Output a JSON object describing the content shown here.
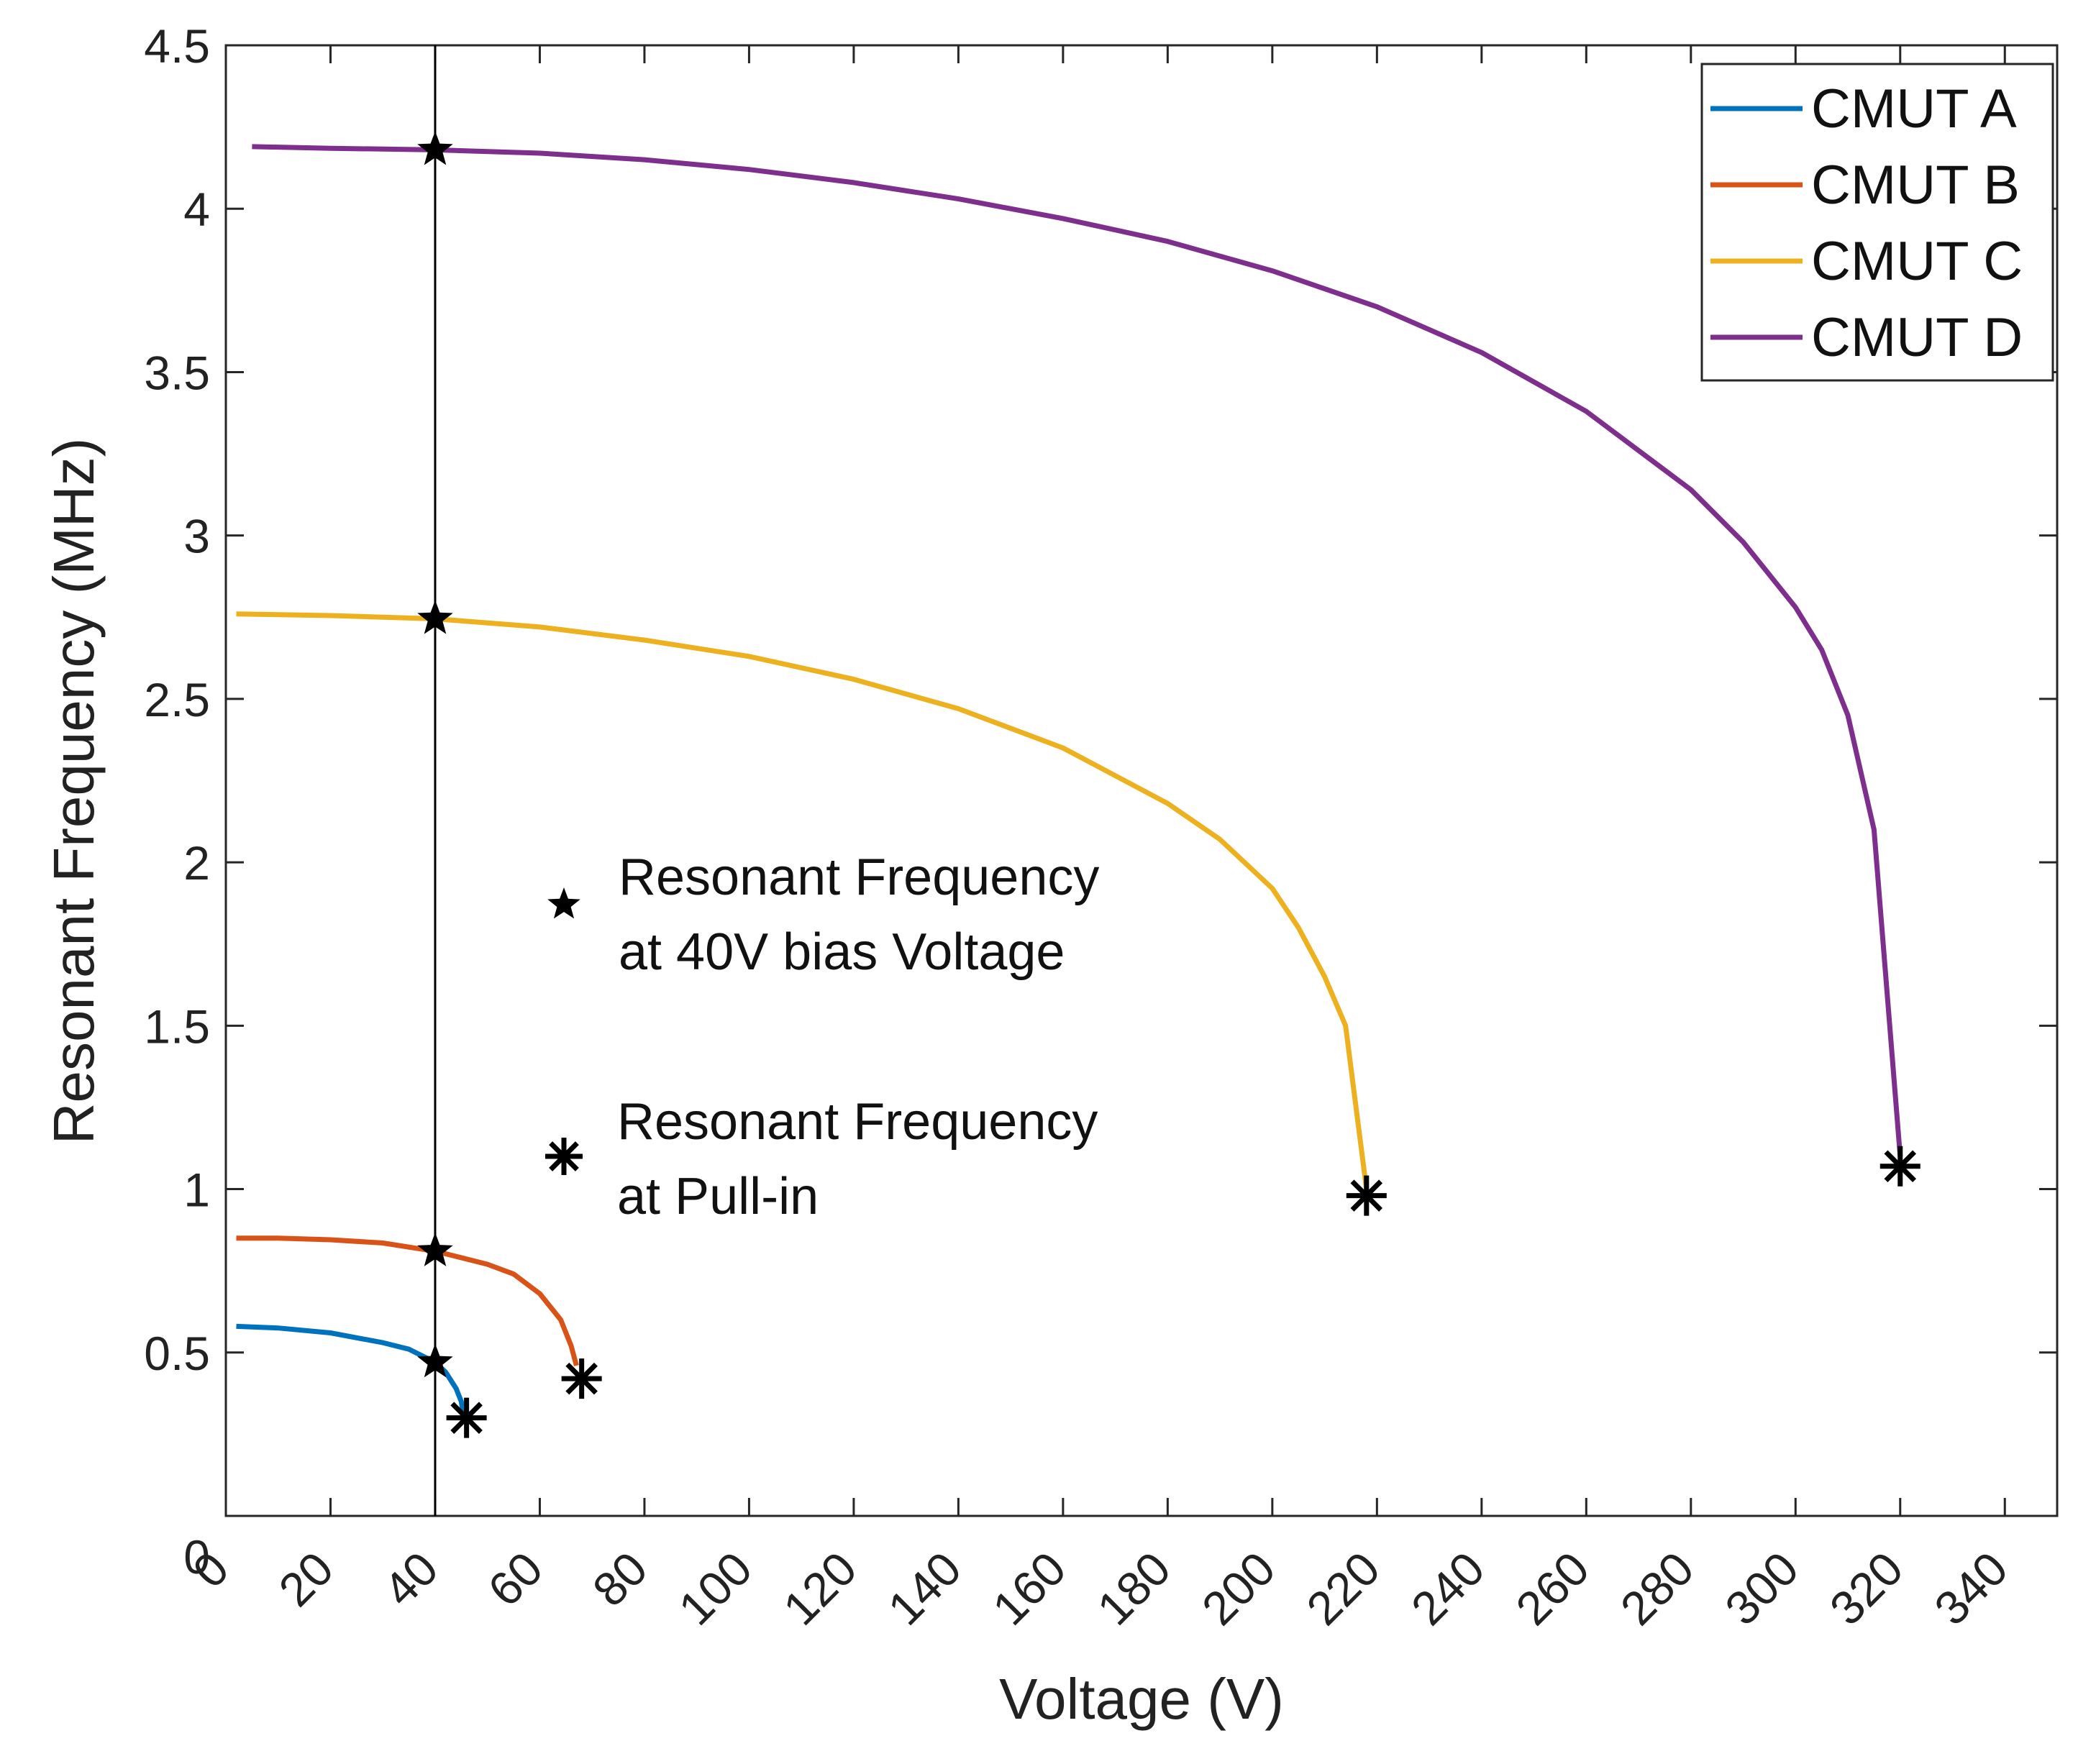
{
  "chart_data": {
    "type": "line",
    "title": "",
    "xlabel": "Voltage (V)",
    "ylabel": "Resonant Frequency (MHz)",
    "xlim": [
      0,
      350
    ],
    "ylim": [
      0,
      4.5
    ],
    "xticks": [
      0,
      20,
      40,
      60,
      80,
      100,
      120,
      140,
      160,
      180,
      200,
      220,
      240,
      260,
      280,
      300,
      320,
      340
    ],
    "xtick_labels": [
      "0",
      "20",
      "40",
      "60",
      "80",
      "100",
      "120",
      "140",
      "160",
      "180",
      "200",
      "220",
      "240",
      "260",
      "280",
      "300",
      "320",
      "340"
    ],
    "yticks": [
      0,
      0.5,
      1,
      1.5,
      2,
      2.5,
      3,
      3.5,
      4,
      4.5
    ],
    "ytick_labels": [
      "0",
      "0.5",
      "1",
      "1.5",
      "2",
      "2.5",
      "3",
      "3.5",
      "4",
      "4.5"
    ],
    "grid": false,
    "legend_position": "top-right",
    "vertical_line_x": 40,
    "series": [
      {
        "name": "CMUT A",
        "color": "#0072BD",
        "x": [
          2,
          10,
          20,
          30,
          35,
          40,
          42,
          44,
          45,
          45.5
        ],
        "y": [
          0.58,
          0.575,
          0.56,
          0.53,
          0.51,
          0.47,
          0.44,
          0.39,
          0.35,
          0.3
        ],
        "marker_40v": [
          40,
          0.47
        ],
        "pull_in": [
          46,
          0.3
        ]
      },
      {
        "name": "CMUT B",
        "color": "#D95319",
        "x": [
          2,
          10,
          20,
          30,
          40,
          50,
          55,
          60,
          64,
          66,
          67
        ],
        "y": [
          0.85,
          0.85,
          0.845,
          0.835,
          0.81,
          0.77,
          0.74,
          0.68,
          0.6,
          0.52,
          0.46
        ],
        "marker_40v": [
          40,
          0.81
        ],
        "pull_in": [
          68,
          0.42
        ]
      },
      {
        "name": "CMUT C",
        "color": "#EDB120",
        "x": [
          2,
          20,
          40,
          60,
          80,
          100,
          120,
          140,
          160,
          180,
          190,
          200,
          205,
          210,
          214,
          218
        ],
        "y": [
          2.76,
          2.755,
          2.745,
          2.72,
          2.68,
          2.63,
          2.56,
          2.47,
          2.35,
          2.18,
          2.07,
          1.92,
          1.8,
          1.65,
          1.5,
          1.0
        ],
        "marker_40v": [
          40,
          2.745
        ],
        "pull_in": [
          218,
          0.98
        ]
      },
      {
        "name": "CMUT D",
        "color": "#7E2F8E",
        "x": [
          5,
          20,
          40,
          60,
          80,
          100,
          120,
          140,
          160,
          180,
          200,
          220,
          240,
          260,
          280,
          290,
          300,
          305,
          310,
          315,
          320
        ],
        "y": [
          4.19,
          4.185,
          4.18,
          4.17,
          4.15,
          4.12,
          4.08,
          4.03,
          3.97,
          3.9,
          3.81,
          3.7,
          3.56,
          3.38,
          3.14,
          2.98,
          2.78,
          2.65,
          2.45,
          2.1,
          1.1
        ],
        "marker_40v": [
          40,
          4.18
        ],
        "pull_in": [
          320,
          1.07
        ]
      }
    ],
    "annotations": [
      {
        "symbol": "star",
        "lines": [
          "Resonant Frequency",
          "at 40V bias Voltage"
        ]
      },
      {
        "symbol": "asterisk",
        "lines": [
          "Resonant Frequency",
          "at Pull-in"
        ]
      }
    ]
  }
}
